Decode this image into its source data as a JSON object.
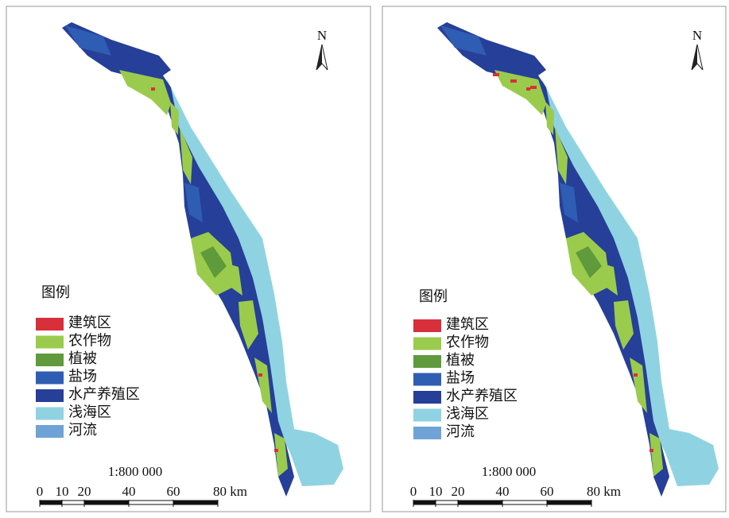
{
  "panels": [
    {
      "north": "N",
      "legend": {
        "title": "图例",
        "items": [
          {
            "label": "建筑区",
            "color": "#d7303a"
          },
          {
            "label": "农作物",
            "color": "#9bcb4c"
          },
          {
            "label": "植被",
            "color": "#5f9a3c"
          },
          {
            "label": "盐场",
            "color": "#2f5db4"
          },
          {
            "label": "水产养殖区",
            "color": "#263f98"
          },
          {
            "label": "浅海区",
            "color": "#8fd3e2"
          },
          {
            "label": "河流",
            "color": "#6fa3d6"
          }
        ]
      },
      "scale": {
        "ratio": "1:800 000",
        "ticks": [
          0,
          10,
          20,
          40,
          60,
          {
            "value": 80,
            "label": "80 km"
          }
        ]
      }
    },
    {
      "north": "N",
      "legend": {
        "title": "图例",
        "items": [
          {
            "label": "建筑区",
            "color": "#d7303a"
          },
          {
            "label": "农作物",
            "color": "#9bcb4c"
          },
          {
            "label": "植被",
            "color": "#5f9a3c"
          },
          {
            "label": "盐场",
            "color": "#2f5db4"
          },
          {
            "label": "水产养殖区",
            "color": "#263f98"
          },
          {
            "label": "浅海区",
            "color": "#8fd3e2"
          },
          {
            "label": "河流",
            "color": "#6fa3d6"
          }
        ]
      },
      "scale": {
        "ratio": "1:800 000",
        "ticks": [
          0,
          10,
          20,
          40,
          60,
          {
            "value": 80,
            "label": "80 km"
          }
        ]
      }
    }
  ]
}
